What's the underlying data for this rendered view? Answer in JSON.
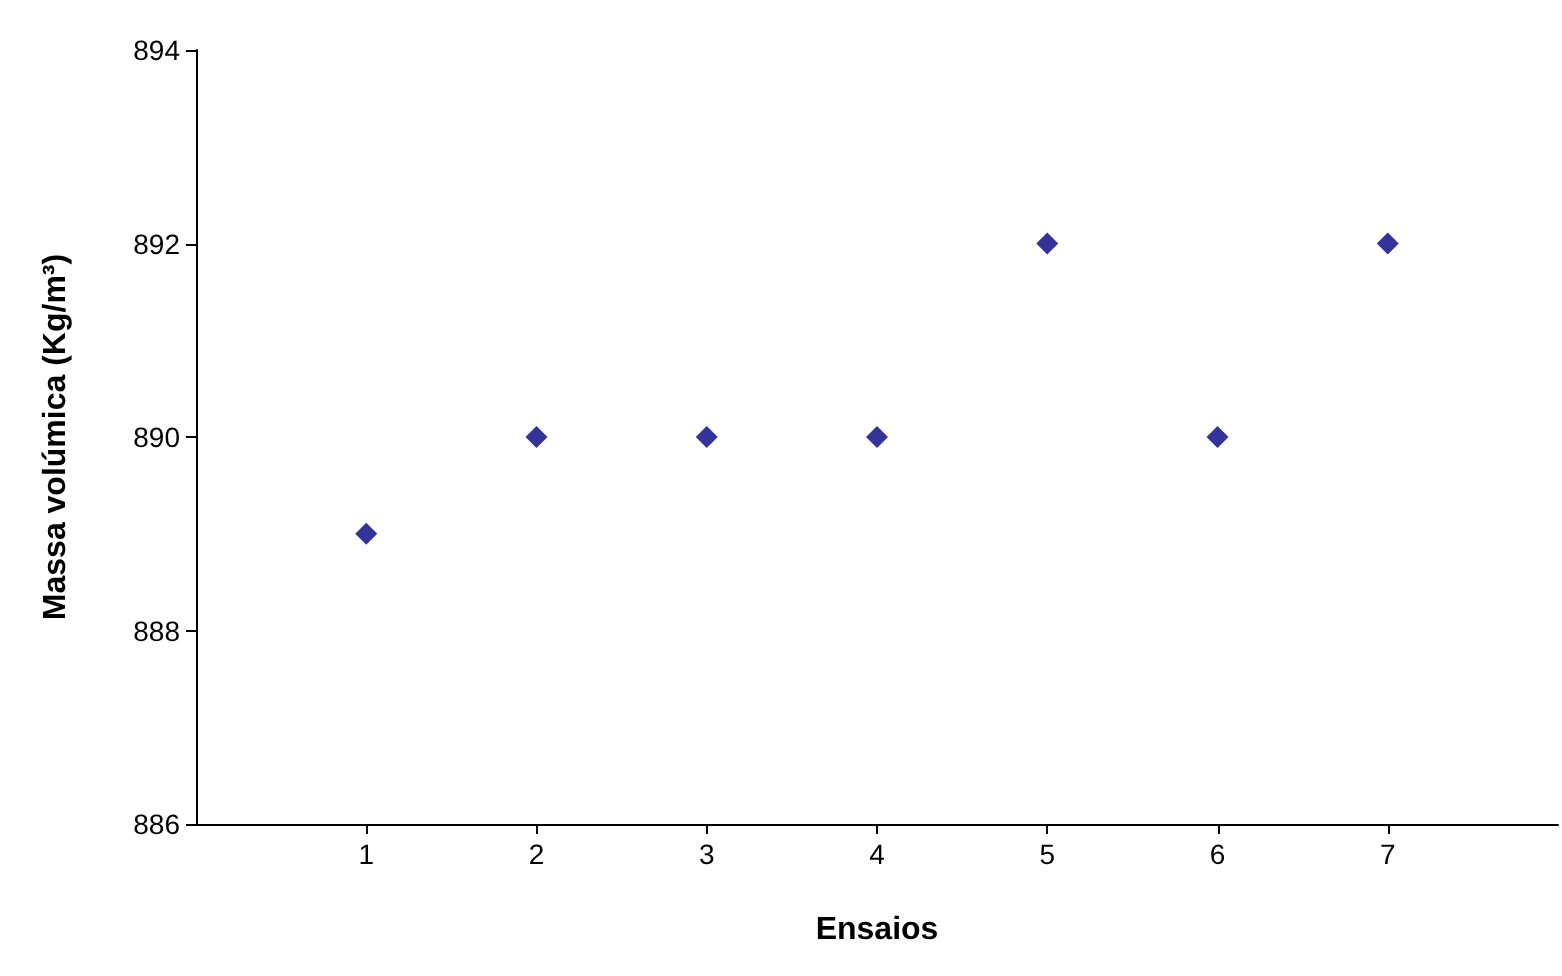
{
  "chart_data": {
    "type": "scatter",
    "xlabel": "Ensaios",
    "ylabel": "Massa volúmica (Kg/m³)",
    "x": [
      1,
      2,
      3,
      4,
      5,
      6,
      7
    ],
    "series": [
      {
        "color": "#000080",
        "values": [
          889,
          890,
          890,
          890,
          892,
          890,
          892
        ]
      }
    ],
    "xlim": [
      0,
      8
    ],
    "xticks": [
      1,
      2,
      3,
      4,
      5,
      6,
      7
    ],
    "ylim": [
      886,
      894
    ],
    "yticks": [
      886,
      888,
      890,
      892,
      894
    ],
    "marker": "diamond"
  }
}
